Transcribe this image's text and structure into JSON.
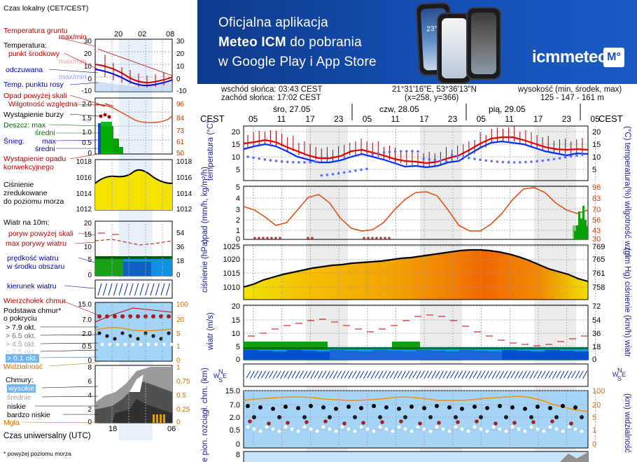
{
  "banner": {
    "line1": "Oficjalna aplikacja",
    "line2_bold": "Meteo ICM",
    "line2_rest": " do pobrania",
    "line3": "w Google Play i App Store",
    "logo_text": "icmmeteo",
    "logo_badge": "M°",
    "phone_temp": "23°"
  },
  "info": {
    "sunrise": "wschód słońca: 03:43 CEST",
    "sunset": "zachód słońca: 17:02 CEST",
    "coords": "21°31'16\"E, 53°36'13\"N",
    "grid": "(x=258,  y=366)",
    "elev_label": "wysokość (min, środek, max)",
    "elev_values": "125 - 147 - 161 m"
  },
  "timeline": {
    "zone_label": "CEST",
    "days": [
      "śro, 27.05",
      "czw, 28.05",
      "pią, 29.05"
    ],
    "hours": [
      "05",
      "11",
      "17",
      "23",
      "05",
      "11",
      "17",
      "23",
      "05",
      "11",
      "17",
      "23",
      "05"
    ]
  },
  "legend_time": {
    "title": "Czas lokalny (CET/CEST)",
    "hours_top": [
      "20",
      "02",
      "08"
    ],
    "utc_title": "Czas uniwersalny (UTC)",
    "hours_bottom": [
      "18",
      "00",
      "06"
    ],
    "footnote": "* powyżej poziomu morza"
  },
  "legend": {
    "soil": "Temperatura gruntu",
    "soil_mm": "max/min",
    "temp": "Temperatura:",
    "temp_mid": "punkt środkowy",
    "temp_mm": "max/min",
    "feel": "odczuwana",
    "feel_mm": "max/min",
    "dew": "Temp. punktu rosy",
    "precip_head": "Opad powyżej skali",
    "humidity": "Wilgotność względna",
    "storm": "Wystąpienie burzy",
    "rain": "Deszcz: max",
    "rain_mean": "średni",
    "snow": "Śnieg:",
    "snow_max": "max",
    "snow_mean": "średni",
    "precip_occ": "Wystąpienie opadu",
    "precip_conv": "konwekcyjnego",
    "pressure": "Ciśnienie",
    "pressure2": "zredukowane",
    "pressure3": "do poziomu morza",
    "wind10": "Wiatr na 10m:",
    "gust_above": "poryw powyżej skali",
    "gust_max": "max porywy wiatru",
    "wind_speed": "prędkość wiatru",
    "wind_area": "w środku obszaru",
    "wind_dir": "kierunek wiatru",
    "cloud_top": "Wierzchołek chmur",
    "cloud_base": "Podstawa chmur*",
    "cloud_cover": "o pokryciu",
    "okt": [
      "> 7.9 okt.",
      "> 6.5 okt.",
      "> 4.5 okt.",
      "> 2.5 okt.",
      "> 0.1 okt."
    ],
    "visibility": "Widzialność",
    "clouds": "Chmury:",
    "cl_high": "wysokie",
    "cl_mid": "średnie",
    "cl_low": "niskie",
    "cl_vlow": "bardzo niskie",
    "fog": "Mgła"
  },
  "legend_axes": {
    "temp_left": [
      "30",
      "20",
      "10",
      "0",
      "-10"
    ],
    "temp_right": [
      "30",
      "20",
      "10",
      "0",
      "-10"
    ],
    "precip_left": [
      "2.0",
      "1.5",
      "1.0",
      "0.5",
      "0"
    ],
    "precip_right": [
      "96",
      "84",
      "73",
      "61",
      "50"
    ],
    "press_left": [
      "1018",
      "1016",
      "1014",
      "1012"
    ],
    "press_right": [
      "1018",
      "1016",
      "1014",
      "1012"
    ],
    "wind_left": [
      "20",
      "15",
      "10",
      "5",
      "0"
    ],
    "wind_right": [
      "72",
      "54",
      "36",
      "18",
      "0"
    ],
    "cloud_left": [
      "15.0",
      "7.0",
      "2.0",
      "0.5",
      "0"
    ],
    "cloud_right": [
      "100",
      "20",
      "5",
      "1",
      "0"
    ],
    "cl_left": [
      "8",
      "6",
      "4",
      "2",
      "0"
    ],
    "cl_right": [
      "1",
      "0.75",
      "0.5",
      "0.25",
      "0"
    ]
  },
  "panels": {
    "temp_label_left": "temperatura (°C)",
    "temp_label_right": "(°C) temperatura",
    "temp_ticks": [
      "20",
      "15",
      "10",
      "5"
    ],
    "precip_label_left": "opad (mm/h, kg/m²/h)",
    "precip_label_right": "(%) wilgotność wzgl.",
    "precip_ticks": [
      "5",
      "4",
      "3",
      "2",
      "1",
      "0"
    ],
    "hum_ticks": [
      "96",
      "83",
      "70",
      "56",
      "43",
      "30"
    ],
    "press_label_left": "ciśnienie (hPa)",
    "press_label_right": "(mm Hg) ciśnienie",
    "press_ticks": [
      "1025",
      "1020",
      "1015",
      "1010"
    ],
    "press_ticks_right": [
      "769",
      "765",
      "761",
      "758"
    ],
    "wind_label_left": "wiatr (m/s)",
    "wind_label_right": "(km/h) wiatr",
    "wind_ticks": [
      "20",
      "15",
      "10",
      "5",
      "0"
    ],
    "wind_ticks_right": [
      "72",
      "54",
      "36",
      "18",
      "0"
    ],
    "dir_label": "W N S",
    "cloud_label_left": "e pion. rozciągł. chm. (km)",
    "cloud_label_right": "(km) widzialność",
    "cloud_ticks": [
      "15.0",
      "7.0",
      "2.0",
      "0.5",
      "0"
    ],
    "vis_ticks": [
      "20",
      "5",
      "1",
      "0"
    ],
    "bottom_tick": "8"
  },
  "colors": {
    "banner": "#1450b4",
    "temp": "#e00000",
    "feel": "#0000ff",
    "dew": "#6080ff",
    "humidity": "#e05010",
    "rain": "#00a000",
    "pressure_low": "#f0e000",
    "pressure_high": "#f06000",
    "wind_green": "#00a000",
    "wind_blue": "#0050d0",
    "cloud_bg": "#a6d4f6",
    "visibility": "#f09000"
  }
}
